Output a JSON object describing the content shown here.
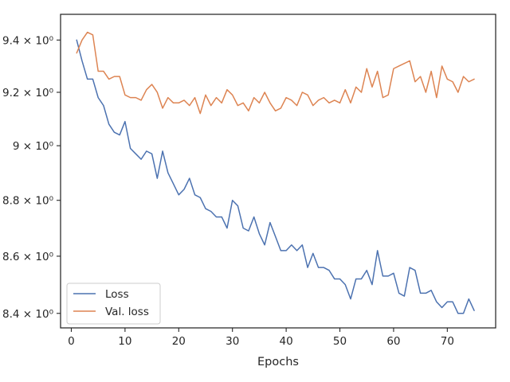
{
  "chart_data": {
    "type": "line",
    "title": "",
    "xlabel": "Epochs",
    "ylabel": "",
    "yscale": "log",
    "xlim": [
      -2,
      79
    ],
    "ylim": [
      8.35,
      9.5
    ],
    "x_ticks": [
      0,
      10,
      20,
      30,
      40,
      50,
      60,
      70
    ],
    "x_tick_labels": [
      "0",
      "10",
      "20",
      "30",
      "40",
      "50",
      "60",
      "70"
    ],
    "y_ticks": [
      8.4,
      8.6,
      8.8,
      9.0,
      9.2,
      9.4
    ],
    "y_tick_labels": [
      "8.4 × 10⁰",
      "8.6 × 10⁰",
      "8.8 × 10⁰",
      "9 × 10⁰",
      "9.2 × 10⁰",
      "9.4 × 10⁰"
    ],
    "grid": false,
    "legend_position": "lower-left",
    "x": [
      1,
      2,
      3,
      4,
      5,
      6,
      7,
      8,
      9,
      10,
      11,
      12,
      13,
      14,
      15,
      16,
      17,
      18,
      19,
      20,
      21,
      22,
      23,
      24,
      25,
      26,
      27,
      28,
      29,
      30,
      31,
      32,
      33,
      34,
      35,
      36,
      37,
      38,
      39,
      40,
      41,
      42,
      43,
      44,
      45,
      46,
      47,
      48,
      49,
      50,
      51,
      52,
      53,
      54,
      55,
      56,
      57,
      58,
      59,
      60,
      61,
      62,
      63,
      64,
      65,
      66,
      67,
      68,
      69,
      70,
      71,
      72,
      73,
      74,
      75
    ],
    "series": [
      {
        "name": "Loss",
        "color": "#4c72b0",
        "values": [
          9.4,
          9.32,
          9.25,
          9.25,
          9.18,
          9.15,
          9.08,
          9.05,
          9.04,
          9.09,
          8.99,
          8.97,
          8.95,
          8.98,
          8.97,
          8.88,
          8.98,
          8.9,
          8.86,
          8.82,
          8.84,
          8.88,
          8.82,
          8.81,
          8.77,
          8.76,
          8.74,
          8.74,
          8.7,
          8.8,
          8.78,
          8.7,
          8.69,
          8.74,
          8.68,
          8.64,
          8.72,
          8.67,
          8.62,
          8.62,
          8.64,
          8.62,
          8.64,
          8.56,
          8.61,
          8.56,
          8.56,
          8.55,
          8.52,
          8.52,
          8.5,
          8.45,
          8.52,
          8.52,
          8.55,
          8.5,
          8.62,
          8.53,
          8.53,
          8.54,
          8.47,
          8.46,
          8.56,
          8.55,
          8.47,
          8.47,
          8.48,
          8.44,
          8.42,
          8.44,
          8.44,
          8.4,
          8.4,
          8.45,
          8.41
        ]
      },
      {
        "name": "Val. loss",
        "color": "#dd8452",
        "values": [
          9.35,
          9.4,
          9.43,
          9.42,
          9.28,
          9.28,
          9.25,
          9.26,
          9.26,
          9.19,
          9.18,
          9.18,
          9.17,
          9.21,
          9.23,
          9.2,
          9.14,
          9.18,
          9.16,
          9.16,
          9.17,
          9.15,
          9.18,
          9.12,
          9.19,
          9.15,
          9.18,
          9.16,
          9.21,
          9.19,
          9.15,
          9.16,
          9.13,
          9.18,
          9.16,
          9.2,
          9.16,
          9.13,
          9.14,
          9.18,
          9.17,
          9.15,
          9.2,
          9.19,
          9.15,
          9.17,
          9.18,
          9.16,
          9.17,
          9.16,
          9.21,
          9.16,
          9.22,
          9.2,
          9.29,
          9.22,
          9.28,
          9.18,
          9.19,
          9.29,
          9.3,
          9.31,
          9.32,
          9.24,
          9.26,
          9.2,
          9.28,
          9.18,
          9.3,
          9.25,
          9.24,
          9.2,
          9.26,
          9.24,
          9.25
        ]
      }
    ]
  }
}
